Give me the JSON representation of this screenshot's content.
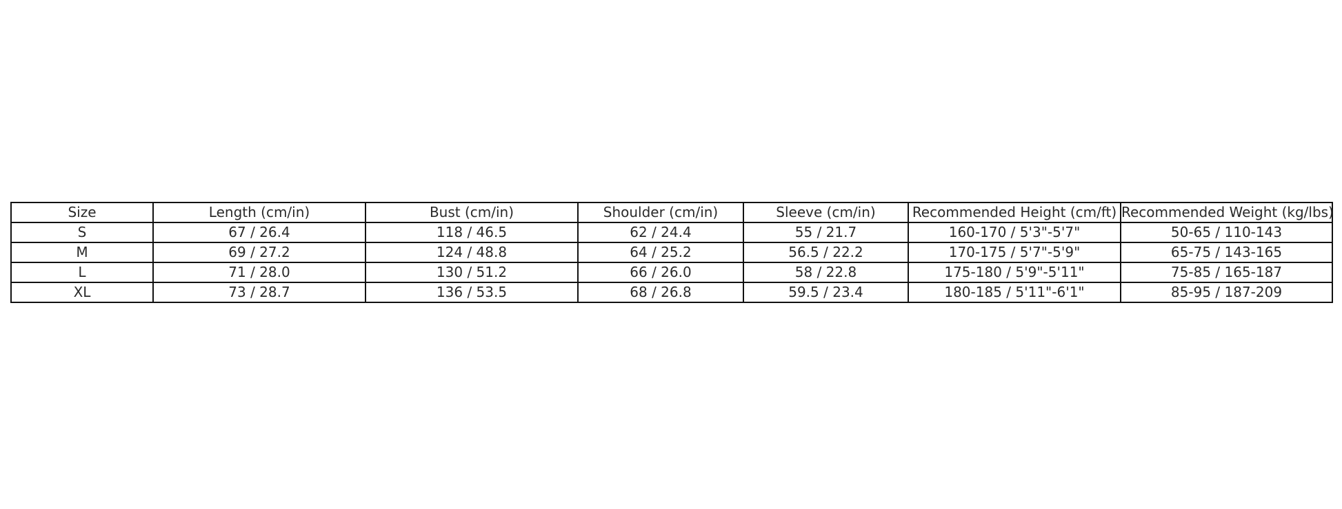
{
  "table": {
    "headers": [
      "Size",
      "Length (cm/in)",
      "Bust (cm/in)",
      "Shoulder (cm/in)",
      "Sleeve (cm/in)",
      "Recommended Height (cm/ft)",
      "Recommended Weight (kg/lbs)"
    ],
    "rows": [
      [
        "S",
        "67 / 26.4",
        "118 / 46.5",
        "62 / 24.4",
        "55 / 21.7",
        "160-170 / 5'3\"-5'7\"",
        "50-65 / 110-143"
      ],
      [
        "M",
        "69 / 27.2",
        "124 / 48.8",
        "64 / 25.2",
        "56.5 / 22.2",
        "170-175 / 5'7\"-5'9\"",
        "65-75 / 143-165"
      ],
      [
        "L",
        "71 / 28.0",
        "130 / 51.2",
        "66 / 26.0",
        "58 / 22.8",
        "175-180 / 5'9\"-5'11\"",
        "75-85 / 165-187"
      ],
      [
        "XL",
        "73 / 28.7",
        "136 / 53.5",
        "68 / 26.8",
        "59.5 / 23.4",
        "180-185 / 5'11\"-6'1\"",
        "85-95 / 187-209"
      ]
    ]
  }
}
